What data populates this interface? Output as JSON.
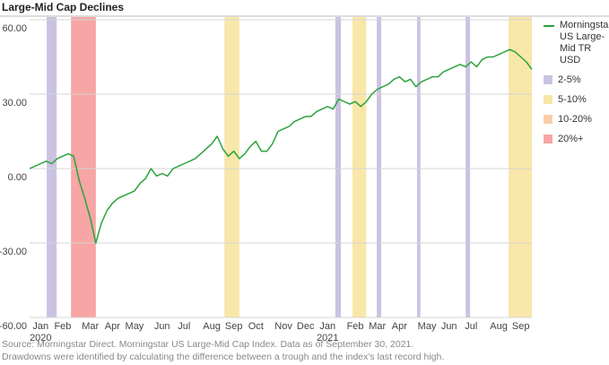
{
  "chart_data": {
    "type": "line",
    "title": "Large-Mid Cap Declines",
    "categories": [
      null,
      null,
      "Jan",
      null,
      null,
      null,
      "Feb",
      null,
      null,
      null,
      null,
      "Mar",
      null,
      null,
      null,
      "Apr",
      null,
      null,
      null,
      "May",
      null,
      null,
      null,
      null,
      "Jun",
      null,
      null,
      null,
      "Jul",
      null,
      null,
      null,
      null,
      "Aug",
      null,
      null,
      null,
      "Sep",
      null,
      null,
      null,
      "Oct",
      null,
      null,
      null,
      null,
      "Nov",
      null,
      null,
      null,
      "Dec",
      null,
      null,
      null,
      "Jan",
      null,
      null,
      null,
      null,
      "Feb",
      null,
      null,
      null,
      "Mar",
      null,
      null,
      null,
      "Apr",
      null,
      null,
      null,
      null,
      "May",
      null,
      null,
      null,
      "Jun",
      null,
      null,
      null,
      "Jul",
      null,
      null,
      null,
      null,
      "Aug",
      null,
      null,
      null,
      "Sep",
      null,
      null
    ],
    "category_years": [
      null,
      null,
      "2020",
      null,
      null,
      null,
      null,
      null,
      null,
      null,
      null,
      null,
      null,
      null,
      null,
      null,
      null,
      null,
      null,
      null,
      null,
      null,
      null,
      null,
      null,
      null,
      null,
      null,
      null,
      null,
      null,
      null,
      null,
      null,
      null,
      null,
      null,
      null,
      null,
      null,
      null,
      null,
      null,
      null,
      null,
      null,
      null,
      null,
      null,
      null,
      null,
      null,
      null,
      null,
      "2021",
      null,
      null,
      null,
      null,
      null,
      null,
      null,
      null,
      null,
      null,
      null,
      null,
      null,
      null,
      null,
      null,
      null,
      null,
      null,
      null,
      null,
      null,
      null,
      null,
      null,
      null,
      null,
      null,
      null,
      null,
      null,
      null,
      null,
      null,
      null,
      null,
      null
    ],
    "series": [
      {
        "name": "Morningstar US Large-Mid TR USD",
        "color": "#2aa33b",
        "values": [
          0,
          1,
          2,
          3,
          2,
          4,
          5,
          6,
          5,
          -5,
          -12,
          -20,
          -30,
          -22,
          -17,
          -14,
          -12,
          -11,
          -10,
          -9,
          -6,
          -4,
          0,
          -3,
          -2,
          -3,
          0,
          1,
          2,
          3,
          4,
          6,
          8,
          10,
          13,
          8,
          5,
          7,
          4,
          6,
          9,
          11,
          7,
          7,
          10,
          15,
          16,
          17,
          19,
          20,
          21,
          21,
          23,
          24,
          25,
          24,
          28,
          27,
          26,
          27,
          25,
          27,
          30,
          32,
          33,
          34,
          36,
          37,
          35,
          36,
          33,
          35,
          36,
          37,
          37,
          39,
          40,
          41,
          42,
          41,
          43,
          41,
          44,
          45,
          45,
          46,
          47,
          48,
          47,
          45,
          43,
          40
        ]
      }
    ],
    "drawdowns": [
      {
        "name": "2-5%",
        "color": "#cbc2e2",
        "periods": [
          [
            3.1,
            4.9
          ],
          [
            55.4,
            56.4
          ],
          [
            62.9,
            63.7
          ],
          [
            70.2,
            70.8
          ],
          [
            79.0,
            79.8
          ]
        ]
      },
      {
        "name": "5-10%",
        "color": "#f8e7a8",
        "periods": [
          [
            35.3,
            38.0
          ],
          [
            58.5,
            61.0
          ],
          [
            86.8,
            91
          ]
        ]
      },
      {
        "name": "10-20%",
        "color": "#f9cfa8",
        "periods": []
      },
      {
        "name": "20%+",
        "color": "#f7a5a5",
        "periods": [
          [
            7.5,
            12.0
          ]
        ]
      }
    ],
    "ylim": [
      -60,
      60
    ],
    "yticks": [
      {
        "value": 60,
        "label": "60.00"
      },
      {
        "value": 30,
        "label": "30.00"
      },
      {
        "value": 0,
        "label": "0.00"
      },
      {
        "value": -30,
        "label": "-30.00"
      },
      {
        "value": -60,
        "label": "-60.00"
      }
    ],
    "grid": true,
    "footnote": [
      "Source: Morningstar Direct. Morningstar US Large-Mid Cap Index. Data as of September 30, 2021.",
      "Drawdowns were identified by calculating the difference between a trough and the index's last record high."
    ]
  }
}
